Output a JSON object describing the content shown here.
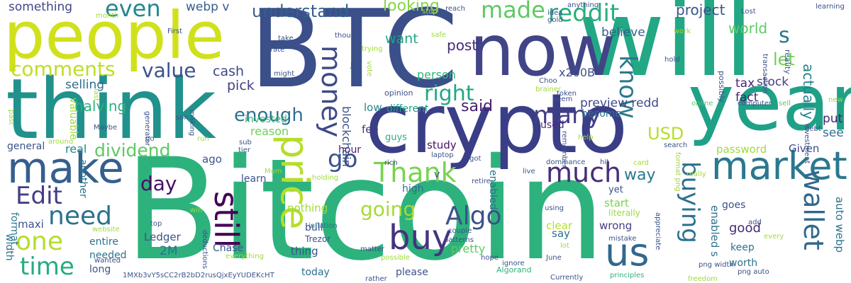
{
  "words": [
    {
      "text": "Bitcoin",
      "color": "#2db27d"
    },
    {
      "text": "BTC",
      "color": "#3b4f8a"
    },
    {
      "text": "crypto",
      "color": "#3a3e87"
    },
    {
      "text": "will",
      "color": "#22a884"
    },
    {
      "text": "think",
      "color": "#21918c"
    },
    {
      "text": "people",
      "color": "#d0e11c"
    },
    {
      "text": "now",
      "color": "#414487"
    },
    {
      "text": "year",
      "color": "#1fa188"
    },
    {
      "text": "make",
      "color": "#355f8d"
    },
    {
      "text": "price",
      "color": "#b5de2b"
    },
    {
      "text": "market",
      "color": "#2a788e"
    },
    {
      "text": "buy",
      "color": "#46327e"
    },
    {
      "text": "us",
      "color": "#31688e"
    },
    {
      "text": "much",
      "color": "#472d7b"
    },
    {
      "text": "Thank",
      "color": "#7ad151"
    },
    {
      "text": "need",
      "color": "#2c728e"
    },
    {
      "text": "Edit",
      "color": "#433e85"
    },
    {
      "text": "one",
      "color": "#b5de2b"
    },
    {
      "text": "time",
      "color": "#25ac82"
    },
    {
      "text": "go",
      "color": "#3b528b"
    },
    {
      "text": "still",
      "color": "#440154"
    },
    {
      "text": "Algo",
      "color": "#3b528b"
    },
    {
      "text": "money",
      "color": "#3e4989"
    },
    {
      "text": "reddit",
      "color": "#29af7f"
    },
    {
      "text": "even",
      "color": "#24878e"
    },
    {
      "text": "right",
      "color": "#22a884"
    },
    {
      "text": "many",
      "color": "#433e85"
    },
    {
      "text": "made",
      "color": "#5ec962"
    },
    {
      "text": "know",
      "color": "#2a788e"
    },
    {
      "text": "wallet",
      "color": "#31688e"
    },
    {
      "text": "buying",
      "color": "#2c728e"
    },
    {
      "text": "comments",
      "color": "#bddf26"
    },
    {
      "text": "value",
      "color": "#3b528b"
    },
    {
      "text": "going",
      "color": "#a5db36"
    },
    {
      "text": "day",
      "color": "#471063"
    },
    {
      "text": "dividend",
      "color": "#5ec962"
    },
    {
      "text": "enough",
      "color": "#2c728e"
    },
    {
      "text": "understand",
      "color": "#355f8d"
    },
    {
      "text": "something",
      "color": "#404688"
    },
    {
      "text": "looking",
      "color": "#86d549"
    },
    {
      "text": "webp v",
      "color": "#365c8d"
    },
    {
      "text": "project",
      "color": "#3b528b"
    },
    {
      "text": "world",
      "color": "#5ec962"
    },
    {
      "text": "s",
      "color": "#2a788e"
    },
    {
      "text": "let",
      "color": "#6ece58"
    },
    {
      "text": "actually",
      "color": "#26828e"
    },
    {
      "text": "post",
      "color": "#482878"
    },
    {
      "text": "want",
      "color": "#20a486"
    },
    {
      "text": "person",
      "color": "#31b57b"
    },
    {
      "text": "x200B",
      "color": "#3b528b"
    },
    {
      "text": "cash",
      "color": "#3e4989"
    },
    {
      "text": "halving",
      "color": "#2db27d"
    },
    {
      "text": "pick",
      "color": "#424086"
    },
    {
      "text": "selling",
      "color": "#2d708e"
    },
    {
      "text": "said",
      "color": "#481f70"
    },
    {
      "text": "USD",
      "color": "#b5de2b"
    },
    {
      "text": "preview redd",
      "color": "#3e4989"
    },
    {
      "text": "believe",
      "color": "#355f8d"
    },
    {
      "text": "tax",
      "color": "#482475"
    },
    {
      "text": "fact",
      "color": "#482475"
    },
    {
      "text": "stock",
      "color": "#433e85"
    },
    {
      "text": "see",
      "color": "#2c728e"
    },
    {
      "text": "password",
      "color": "#9fda3a"
    },
    {
      "text": "Given",
      "color": "#3e4989"
    },
    {
      "text": "put",
      "color": "#482475"
    },
    {
      "text": "way",
      "color": "#2a788e"
    },
    {
      "text": "reason",
      "color": "#6ece58"
    },
    {
      "text": "invested",
      "color": "#35b779"
    },
    {
      "text": "blockchain",
      "color": "#3b528b"
    },
    {
      "text": "low",
      "color": "#26828e"
    },
    {
      "text": "different",
      "color": "#1f9e89"
    },
    {
      "text": "used",
      "color": "#472d7b"
    },
    {
      "text": "fee",
      "color": "#443a83"
    },
    {
      "text": "guys",
      "color": "#29af7f"
    },
    {
      "text": "study",
      "color": "#471063"
    },
    {
      "text": "hour",
      "color": "#481f70"
    },
    {
      "text": "general",
      "color": "#3b528b"
    },
    {
      "text": "real",
      "color": "#24878e"
    },
    {
      "text": "valuable",
      "color": "#9fda3a"
    },
    {
      "text": "format",
      "color": "#2a788e"
    },
    {
      "text": "width",
      "color": "#2c728e"
    },
    {
      "text": "maxi",
      "color": "#3b528b"
    },
    {
      "text": "another",
      "color": "#2c728e"
    },
    {
      "text": "entire",
      "color": "#2c728e"
    },
    {
      "text": "needed",
      "color": "#2c728e"
    },
    {
      "text": "long",
      "color": "#3b528b"
    },
    {
      "text": "Ledger",
      "color": "#3b528b"
    },
    {
      "text": "2M",
      "color": "#2c728e"
    },
    {
      "text": "learn",
      "color": "#3b528b"
    },
    {
      "text": "ago",
      "color": "#3b528b"
    },
    {
      "text": "nothing",
      "color": "#9fda3a"
    },
    {
      "text": "thing",
      "color": "#3b528b"
    },
    {
      "text": "Chase",
      "color": "#3b528b"
    },
    {
      "text": "today",
      "color": "#2c728e"
    },
    {
      "text": "bull",
      "color": "#3b528b"
    },
    {
      "text": "high",
      "color": "#2c728e"
    },
    {
      "text": "pretty",
      "color": "#5ec962"
    },
    {
      "text": "start",
      "color": "#7ad151"
    },
    {
      "text": "literally",
      "color": "#9fda3a"
    },
    {
      "text": "wrong",
      "color": "#433e85"
    },
    {
      "text": "clear",
      "color": "#b5de2b"
    },
    {
      "text": "say",
      "color": "#2c728e"
    },
    {
      "text": "yet",
      "color": "#3b528b"
    },
    {
      "text": "become",
      "color": "#2c728e"
    },
    {
      "text": "enabled s",
      "color": "#2c728e"
    },
    {
      "text": "goes",
      "color": "#3b528b"
    },
    {
      "text": "good",
      "color": "#482878"
    },
    {
      "text": "keep",
      "color": "#2c728e"
    },
    {
      "text": "worth",
      "color": "#2c728e"
    },
    {
      "text": "auto webp",
      "color": "#2c728e"
    },
    {
      "text": "enabled",
      "color": "#2c728e"
    },
    {
      "text": "v",
      "color": "#3b528b"
    },
    {
      "text": "please",
      "color": "#3b528b"
    },
    {
      "text": "1MXb3vY5sCC2rB2bD2rusQjxEyYUDEKcHT",
      "color": "#3b528b"
    },
    {
      "text": "reality",
      "color": "#3b528b"
    },
    {
      "text": "possibly",
      "color": "#3b528b"
    },
    {
      "text": "investment",
      "color": "#3b528b"
    },
    {
      "text": "transaction",
      "color": "#3b528b"
    },
    {
      "text": "png width",
      "color": "#3b528b"
    },
    {
      "text": "really",
      "color": "#9fda3a"
    },
    {
      "text": "format png",
      "color": "#9fda3a"
    },
    {
      "text": "png auto",
      "color": "#3b528b"
    },
    {
      "text": "June",
      "color": "#3b528b"
    },
    {
      "text": "Currently",
      "color": "#3b528b"
    },
    {
      "text": "Algorand",
      "color": "#2db27d"
    },
    {
      "text": "principles",
      "color": "#2db27d"
    },
    {
      "text": "freedom",
      "color": "#9fda3a"
    },
    {
      "text": "dominance",
      "color": "#3b528b"
    },
    {
      "text": "hit",
      "color": "#3b528b"
    },
    {
      "text": "card",
      "color": "#9fda3a"
    },
    {
      "text": "live",
      "color": "#3b528b"
    },
    {
      "text": "search",
      "color": "#3b528b"
    },
    {
      "text": "remember",
      "color": "#3b528b"
    },
    {
      "text": "help",
      "color": "#9fda3a"
    },
    {
      "text": "online",
      "color": "#5ec962"
    },
    {
      "text": "computer",
      "color": "#3b528b"
    },
    {
      "text": "sell",
      "color": "#5ec962"
    },
    {
      "text": "debt",
      "color": "#3b528b"
    },
    {
      "text": "new",
      "color": "#9fda3a"
    },
    {
      "text": "every",
      "color": "#9fda3a"
    },
    {
      "text": "add",
      "color": "#3b528b"
    },
    {
      "text": "appreciate",
      "color": "#3b528b"
    },
    {
      "text": "ignore",
      "color": "#3b528b"
    },
    {
      "text": "lot",
      "color": "#9fda3a"
    },
    {
      "text": "mistake",
      "color": "#3b528b"
    },
    {
      "text": "using",
      "color": "#3b528b"
    },
    {
      "text": "hope",
      "color": "#3b528b"
    },
    {
      "text": "patterns",
      "color": "#3b528b"
    },
    {
      "text": "couple",
      "color": "#3b528b"
    },
    {
      "text": "Trezor",
      "color": "#3b528b"
    },
    {
      "text": "inflation",
      "color": "#2c728e"
    },
    {
      "text": "matter",
      "color": "#3b528b"
    },
    {
      "text": "possible",
      "color": "#9fda3a"
    },
    {
      "text": "rather",
      "color": "#3b528b"
    },
    {
      "text": "everything",
      "color": "#9fda3a"
    },
    {
      "text": "retire",
      "color": "#3b528b"
    },
    {
      "text": "holding",
      "color": "#9fda3a"
    },
    {
      "text": "rich",
      "color": "#3b528b"
    },
    {
      "text": "got",
      "color": "#3b528b"
    },
    {
      "text": "laptop",
      "color": "#3b528b"
    },
    {
      "text": "brainer",
      "color": "#9fda3a"
    },
    {
      "text": "token",
      "color": "#3b528b"
    },
    {
      "text": "seem",
      "color": "#3b528b"
    },
    {
      "text": "Choo",
      "color": "#3b528b"
    },
    {
      "text": "vote",
      "color": "#9fda3a"
    },
    {
      "text": "opinion",
      "color": "#3b528b"
    },
    {
      "text": "Job",
      "color": "#3b528b"
    },
    {
      "text": "trying",
      "color": "#9fda3a"
    },
    {
      "text": "safe",
      "color": "#9fda3a"
    },
    {
      "text": "rate",
      "color": "#3b528b"
    },
    {
      "text": "take",
      "color": "#3b528b"
    },
    {
      "text": "though",
      "color": "#3b528b"
    },
    {
      "text": "might",
      "color": "#3b528b"
    },
    {
      "text": "First",
      "color": "#3b528b"
    },
    {
      "text": "stop",
      "color": "#9fda3a"
    },
    {
      "text": "reach",
      "color": "#3b528b"
    },
    {
      "text": "month",
      "color": "#9fda3a"
    },
    {
      "text": "idea",
      "color": "#3b528b"
    },
    {
      "text": "gold",
      "color": "#3b528b"
    },
    {
      "text": "anything",
      "color": "#3b528b"
    },
    {
      "text": "Lost",
      "color": "#3b528b"
    },
    {
      "text": "learning",
      "color": "#3b528b"
    },
    {
      "text": "work",
      "color": "#9fda3a"
    },
    {
      "text": "hold",
      "color": "#3b528b"
    },
    {
      "text": "last",
      "color": "#9fda3a"
    },
    {
      "text": "past",
      "color": "#9fda3a"
    },
    {
      "text": "making",
      "color": "#3b528b"
    },
    {
      "text": "son",
      "color": "#3b528b"
    },
    {
      "text": "generator",
      "color": "#3b528b"
    },
    {
      "text": "Maybe",
      "color": "#3b528b"
    },
    {
      "text": "around",
      "color": "#9fda3a"
    },
    {
      "text": "go",
      "color": "#3b528b"
    },
    {
      "text": "sub",
      "color": "#3b528b"
    },
    {
      "text": "tier",
      "color": "#3b528b"
    },
    {
      "text": "run",
      "color": "#9fda3a"
    },
    {
      "text": "Mom",
      "color": "#9fda3a"
    },
    {
      "text": "win",
      "color": "#9fda3a"
    },
    {
      "text": "top",
      "color": "#3b528b"
    },
    {
      "text": "website",
      "color": "#9fda3a"
    },
    {
      "text": "deductions",
      "color": "#3b528b"
    },
    {
      "text": "wanted",
      "color": "#3b528b"
    }
  ]
}
